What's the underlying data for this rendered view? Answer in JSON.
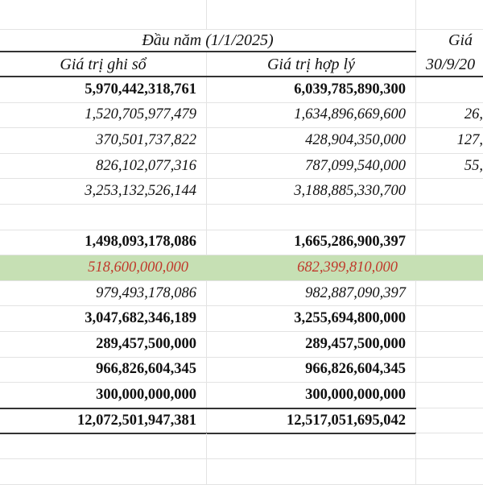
{
  "header": {
    "group_title": "Đầu năm (1/1/2025)",
    "col_book_value": "Giá trị ghi sổ",
    "col_fair_value": "Giá trị hợp lý",
    "col3_line1": "Giá",
    "col3_line2": "30/9/20"
  },
  "colors": {
    "highlight_row": "#c6e0b4",
    "highlight_text": "#c0392b"
  },
  "rows": [
    {
      "book": "5,970,442,318,761",
      "fair": "6,039,785,890,300",
      "col3": "",
      "style": "bold"
    },
    {
      "book": "1,520,705,977,479",
      "fair": "1,634,896,669,600",
      "col3": "26,",
      "style": "italic"
    },
    {
      "book": "370,501,737,822",
      "fair": "428,904,350,000",
      "col3": "127,",
      "style": "italic"
    },
    {
      "book": "826,102,077,316",
      "fair": "787,099,540,000",
      "col3": "55,",
      "style": "italic"
    },
    {
      "book": "3,253,132,526,144",
      "fair": "3,188,885,330,700",
      "col3": "",
      "style": "italic"
    },
    {
      "book": "",
      "fair": "",
      "col3": "",
      "style": "blank"
    },
    {
      "book": "1,498,093,178,086",
      "fair": "1,665,286,900,397",
      "col3": "",
      "style": "bold"
    },
    {
      "book": "518,600,000,000",
      "fair": "682,399,810,000",
      "col3": "",
      "style": "highlight"
    },
    {
      "book": "979,493,178,086",
      "fair": "982,887,090,397",
      "col3": "",
      "style": "italic"
    },
    {
      "book": "3,047,682,346,189",
      "fair": "3,255,694,800,000",
      "col3": "",
      "style": "bold"
    },
    {
      "book": "289,457,500,000",
      "fair": "289,457,500,000",
      "col3": "",
      "style": "bold"
    },
    {
      "book": "966,826,604,345",
      "fair": "966,826,604,345",
      "col3": "",
      "style": "bold"
    },
    {
      "book": "300,000,000,000",
      "fair": "300,000,000,000",
      "col3": "",
      "style": "bold"
    },
    {
      "book": "12,072,501,947,381",
      "fair": "12,517,051,695,042",
      "col3": "",
      "style": "total"
    }
  ]
}
